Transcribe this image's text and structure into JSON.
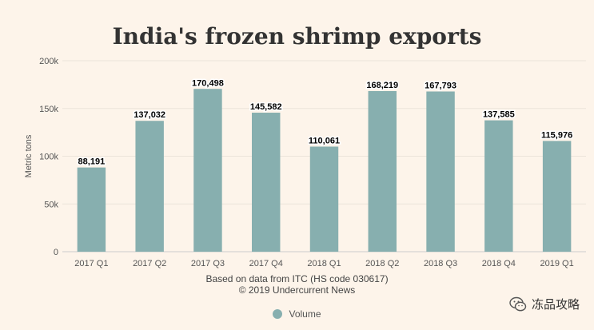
{
  "chart_data": {
    "type": "bar",
    "title": "India's frozen shrimp exports",
    "ylabel": "Metric tons",
    "xlabel": "",
    "categories": [
      "2017 Q1",
      "2017 Q2",
      "2017 Q3",
      "2017 Q4",
      "2018 Q1",
      "2018 Q2",
      "2018 Q3",
      "2018 Q4",
      "2019 Q1"
    ],
    "series": [
      {
        "name": "Volume",
        "values": [
          88191,
          137032,
          170498,
          145582,
          110061,
          168219,
          167793,
          137585,
          115976
        ],
        "labels": [
          "88,191",
          "137,032",
          "170,498",
          "145,582",
          "110,061",
          "168,219",
          "167,793",
          "137,585",
          "115,976"
        ]
      }
    ],
    "ylim": [
      0,
      200000
    ],
    "yticks": [
      0,
      50000,
      100000,
      150000,
      200000
    ],
    "ytick_labels": [
      "0",
      "50k",
      "100k",
      "150k",
      "200k"
    ],
    "grid": true,
    "legend_position": "bottom-center",
    "bar_color": "#87afaf",
    "caption": [
      "Based on data from ITC (HS code 030617)",
      "© 2019 Undercurrent News"
    ]
  },
  "watermark": {
    "text": "冻品攻略",
    "icon": "wechat-icon"
  }
}
